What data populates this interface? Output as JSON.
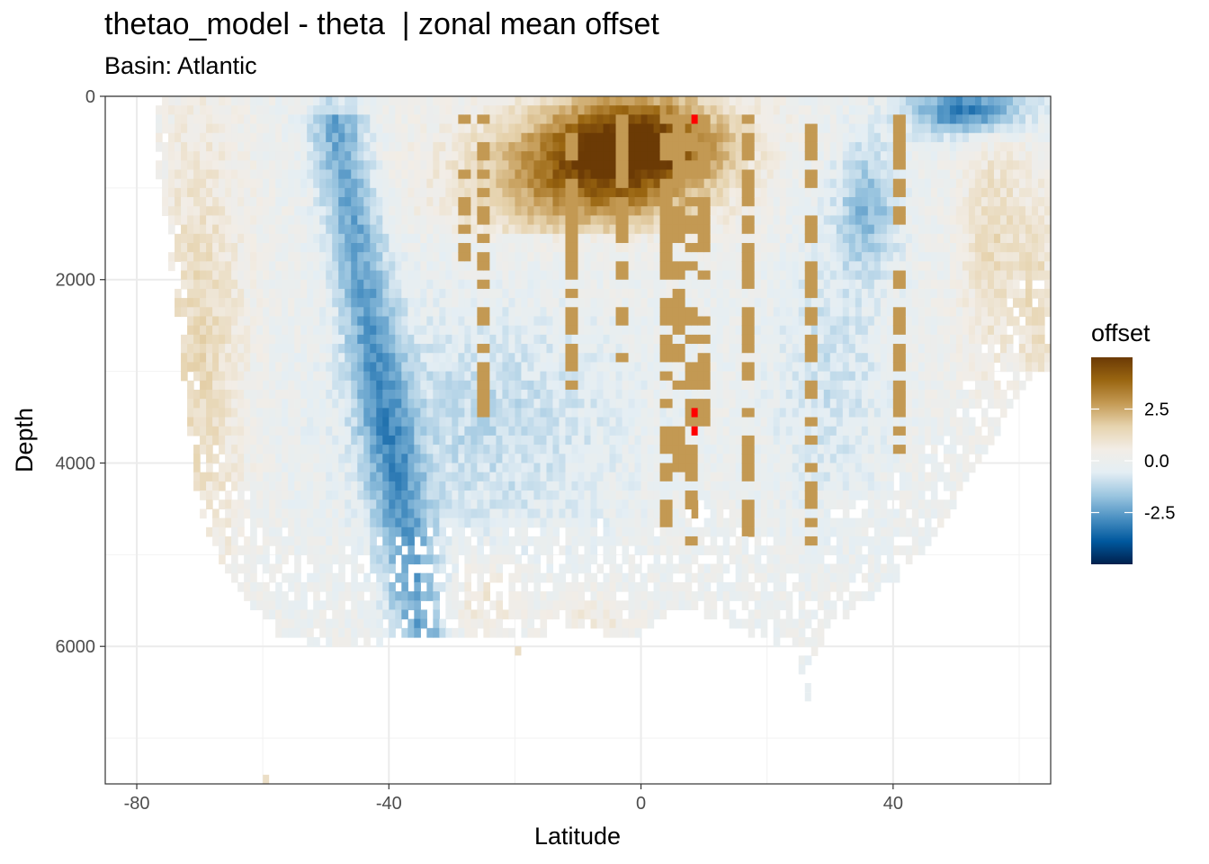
{
  "chart_data": {
    "type": "heatmap",
    "title": "thetao_model - theta  | zonal mean offset",
    "subtitle": "Basin: Atlantic",
    "xlabel": "Latitude",
    "ylabel": "Depth",
    "xlim": [
      -85,
      65
    ],
    "ylim": [
      7500,
      0
    ],
    "x_ticks": [
      -80,
      -40,
      0,
      40
    ],
    "x_tick_labels": [
      "-80",
      "-40",
      "0",
      "40"
    ],
    "y_ticks": [
      0,
      2000,
      4000,
      6000
    ],
    "y_tick_labels": [
      "0",
      "2000",
      "4000",
      "6000"
    ],
    "grid": true,
    "legend": {
      "title": "offset",
      "position": "right",
      "range": [
        -5,
        5
      ],
      "ticks": [
        2.5,
        0.0,
        -2.5
      ],
      "tick_labels": [
        "2.5",
        "0.0",
        "-2.5"
      ],
      "colors_low_to_high": [
        "#00204c",
        "#00589e",
        "#4a90c2",
        "#9cc6e0",
        "#e4eef4",
        "#f2ede6",
        "#e6d3ae",
        "#c49a54",
        "#9a6611",
        "#6b3a05"
      ]
    },
    "features": [
      {
        "name": "surface-warm-band",
        "lat": [
          -14,
          14
        ],
        "depth": [
          100,
          1400
        ],
        "offset": 4.2
      },
      {
        "name": "southern-warm-shelf",
        "lat": [
          -76,
          -60
        ],
        "depth": [
          100,
          5400
        ],
        "offset": 1.5
      },
      {
        "name": "antarctic-intermediate-cold-tongue",
        "lat": [
          -55,
          -40
        ],
        "depth": [
          200,
          3200
        ],
        "offset": -2.2
      },
      {
        "name": "deep-cold-body",
        "lat": [
          -45,
          20
        ],
        "depth": [
          1500,
          5800
        ],
        "offset": -0.9
      },
      {
        "name": "north-atlantic-cold-surface",
        "lat": [
          44,
          62
        ],
        "depth": [
          0,
          600
        ],
        "offset": -3.2
      },
      {
        "name": "subpolar-cold-patch",
        "lat": [
          30,
          42
        ],
        "depth": [
          300,
          2600
        ],
        "offset": -1.6
      },
      {
        "name": "northern-warm-edge",
        "lat": [
          48,
          65
        ],
        "depth": [
          600,
          3200
        ],
        "offset": 1.2
      }
    ],
    "outlier_cells_offset": 6.0,
    "outlier_cells": [
      {
        "lat": 8.5,
        "depth": 250
      },
      {
        "lat": 8.5,
        "depth": 3450
      },
      {
        "lat": 8.5,
        "depth": 3650
      }
    ],
    "warm_streak_columns_lat": [
      -28,
      -25,
      -11,
      -3,
      4,
      6,
      8,
      10,
      17,
      27,
      41
    ],
    "warm_streak_bottoms": [
      1800,
      3500,
      3200,
      2900,
      4700,
      4200,
      5000,
      3600,
      4800,
      4900,
      4000
    ],
    "warm_streak_offset": 2.8
  }
}
